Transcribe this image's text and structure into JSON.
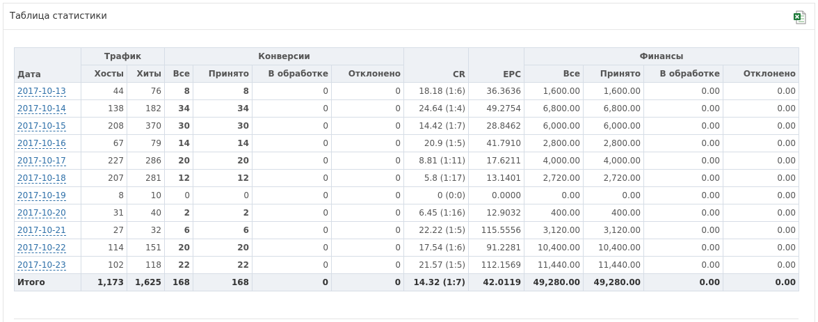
{
  "panel": {
    "title": "Таблица статистики",
    "export_icon": "excel-export-icon"
  },
  "table": {
    "group_headers": {
      "date": "Дата",
      "traffic": "Трафик",
      "conversions": "Конверсии",
      "cr": "CR",
      "epc": "EPC",
      "finance": "Финансы"
    },
    "sub_headers": {
      "hosts": "Хосты",
      "hits": "Хиты",
      "conv_all": "Все",
      "conv_accepted": "Принято",
      "conv_processing": "В обработке",
      "conv_rejected": "Отклонено",
      "fin_all": "Все",
      "fin_accepted": "Принято",
      "fin_processing": "В обработке",
      "fin_rejected": "Отклонено"
    },
    "rows": [
      [
        "2017-10-13",
        "44",
        "76",
        "8",
        "8",
        "0",
        "0",
        "18.18 (1:6)",
        "36.3636",
        "1,600.00",
        "1,600.00",
        "0.00",
        "0.00"
      ],
      [
        "2017-10-14",
        "138",
        "182",
        "34",
        "34",
        "0",
        "0",
        "24.64 (1:4)",
        "49.2754",
        "6,800.00",
        "6,800.00",
        "0.00",
        "0.00"
      ],
      [
        "2017-10-15",
        "208",
        "370",
        "30",
        "30",
        "0",
        "0",
        "14.42 (1:7)",
        "28.8462",
        "6,000.00",
        "6,000.00",
        "0.00",
        "0.00"
      ],
      [
        "2017-10-16",
        "67",
        "79",
        "14",
        "14",
        "0",
        "0",
        "20.9 (1:5)",
        "41.7910",
        "2,800.00",
        "2,800.00",
        "0.00",
        "0.00"
      ],
      [
        "2017-10-17",
        "227",
        "286",
        "20",
        "20",
        "0",
        "0",
        "8.81 (1:11)",
        "17.6211",
        "4,000.00",
        "4,000.00",
        "0.00",
        "0.00"
      ],
      [
        "2017-10-18",
        "207",
        "281",
        "12",
        "12",
        "0",
        "0",
        "5.8 (1:17)",
        "13.1401",
        "2,720.00",
        "2,720.00",
        "0.00",
        "0.00"
      ],
      [
        "2017-10-19",
        "8",
        "10",
        "0",
        "0",
        "0",
        "0",
        "0 (0:0)",
        "0.0000",
        "0.00",
        "0.00",
        "0.00",
        "0.00"
      ],
      [
        "2017-10-20",
        "31",
        "40",
        "2",
        "2",
        "0",
        "0",
        "6.45 (1:16)",
        "12.9032",
        "400.00",
        "400.00",
        "0.00",
        "0.00"
      ],
      [
        "2017-10-21",
        "27",
        "32",
        "6",
        "6",
        "0",
        "0",
        "22.22 (1:5)",
        "115.5556",
        "3,120.00",
        "3,120.00",
        "0.00",
        "0.00"
      ],
      [
        "2017-10-22",
        "114",
        "151",
        "20",
        "20",
        "0",
        "0",
        "17.54 (1:6)",
        "91.2281",
        "10,400.00",
        "10,400.00",
        "0.00",
        "0.00"
      ],
      [
        "2017-10-23",
        "102",
        "118",
        "22",
        "22",
        "0",
        "0",
        "21.57 (1:5)",
        "112.1569",
        "11,440.00",
        "11,440.00",
        "0.00",
        "0.00"
      ]
    ],
    "totals": [
      "Итого",
      "1,173",
      "1,625",
      "168",
      "168",
      "0",
      "0",
      "14.32 (1:7)",
      "42.0119",
      "49,280.00",
      "49,280.00",
      "0.00",
      "0.00"
    ],
    "colors": {
      "link": "#2d6fa8",
      "header_bg": "#eef1f5",
      "border": "#d6dde6"
    }
  }
}
